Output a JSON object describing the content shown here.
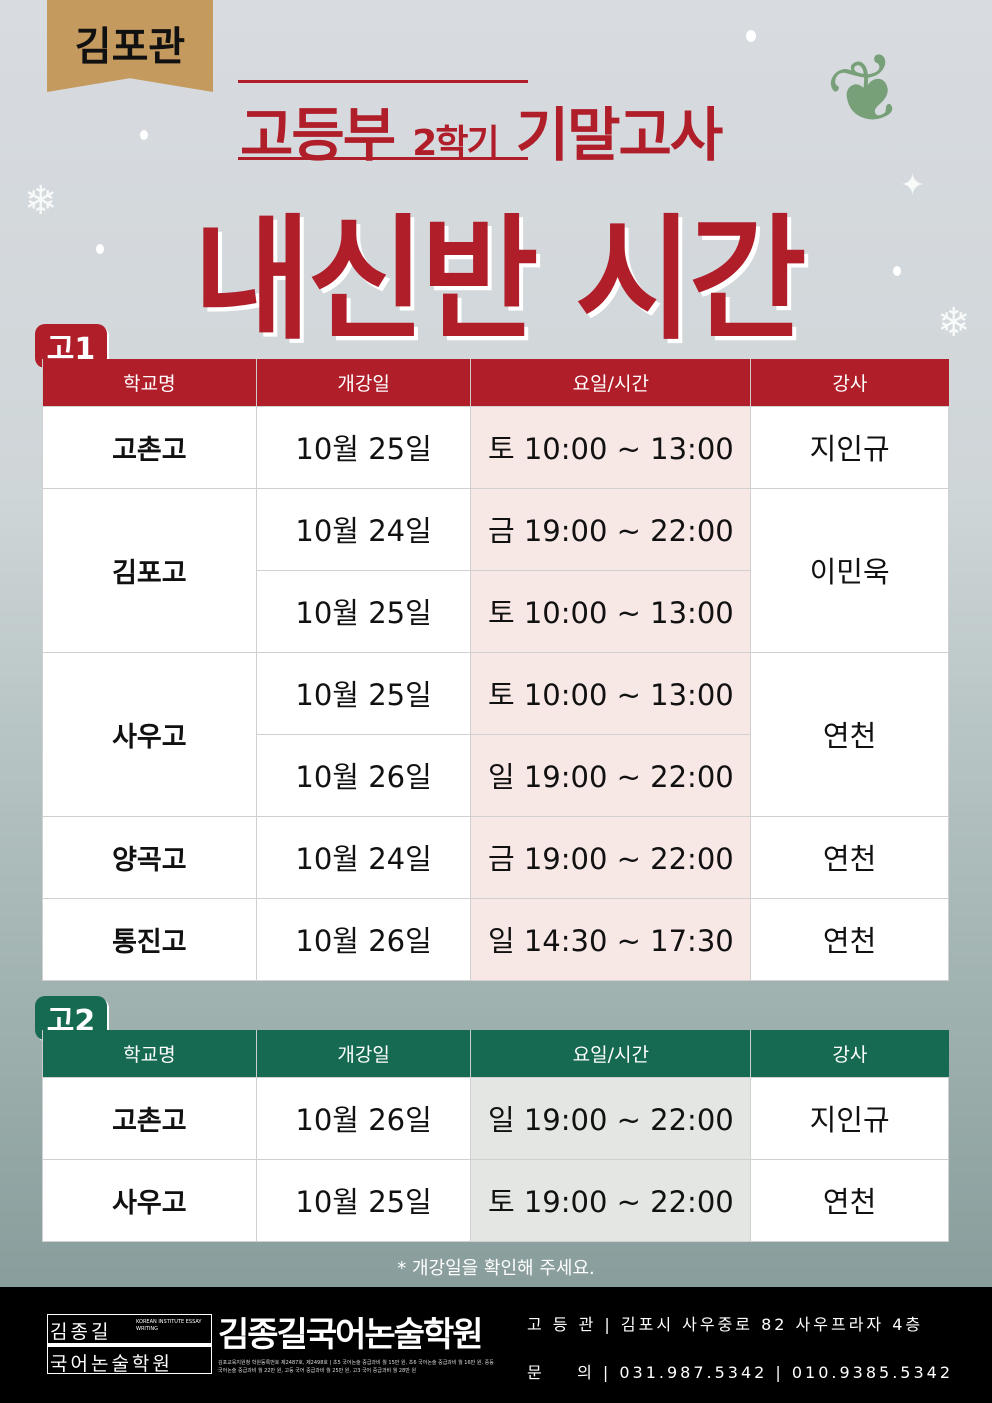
{
  "branch": "김포관",
  "subtitle": {
    "a": "고등부 ",
    "b": "2학기",
    "c": " 기말고사"
  },
  "title": "내신반 시간표",
  "colors": {
    "red": "#b01e2a",
    "green": "#176a52",
    "pink_cell": "#f7e8e6",
    "gray_cell": "#e4e6e3",
    "gold": "#c49a5e"
  },
  "headers": [
    "학교명",
    "개강일",
    "요일/시간",
    "강사"
  ],
  "g1": {
    "label": "고1",
    "schools": [
      {
        "name": "고촌고",
        "sessions": [
          [
            "10월 25일",
            "토 10:00 ~ 13:00"
          ]
        ],
        "teacher": "지인규"
      },
      {
        "name": "김포고",
        "sessions": [
          [
            "10월 24일",
            "금 19:00 ~ 22:00"
          ],
          [
            "10월 25일",
            "토 10:00 ~ 13:00"
          ]
        ],
        "teacher": "이민욱"
      },
      {
        "name": "사우고",
        "sessions": [
          [
            "10월 25일",
            "토 10:00 ~ 13:00"
          ],
          [
            "10월 26일",
            "일 19:00 ~ 22:00"
          ]
        ],
        "teacher": "연천"
      },
      {
        "name": "양곡고",
        "sessions": [
          [
            "10월 24일",
            "금 19:00 ~ 22:00"
          ]
        ],
        "teacher": "연천"
      },
      {
        "name": "통진고",
        "sessions": [
          [
            "10월 26일",
            "일 14:30 ~ 17:30"
          ]
        ],
        "teacher": "연천"
      }
    ]
  },
  "g2": {
    "label": "고2",
    "schools": [
      {
        "name": "고촌고",
        "sessions": [
          [
            "10월 26일",
            "일 19:00 ~ 22:00"
          ]
        ],
        "teacher": "지인규"
      },
      {
        "name": "사우고",
        "sessions": [
          [
            "10월 25일",
            "토 19:00 ~ 22:00"
          ]
        ],
        "teacher": "연천"
      }
    ]
  },
  "note": "* 개강일을 확인해 주세요.",
  "footer": {
    "logo_top": "김종길",
    "logo_bottom": "국어논술학원",
    "logo_en": "KOREAN INSTITUTE ESSAY WRITING",
    "brand": "김종길국어논술학원",
    "fine_print": "김포교육지원청 학원등록번호 제2487호, 제2498호 | 초5 국어논술 중급과비 월 15만 원, 초6 국어논술 중급과비 월 16만 원, 중등 국어논술 중급과비 월 22만 원, 고등 국어 중급과비 월 25만 원, 고3 국어 중급과비 월 28만 원",
    "address": "고 등 관 | 김포시 사우중로 82 사우프라자 4층",
    "contact": "문    의 | 031.987.5342 | 010.9385.5342"
  }
}
